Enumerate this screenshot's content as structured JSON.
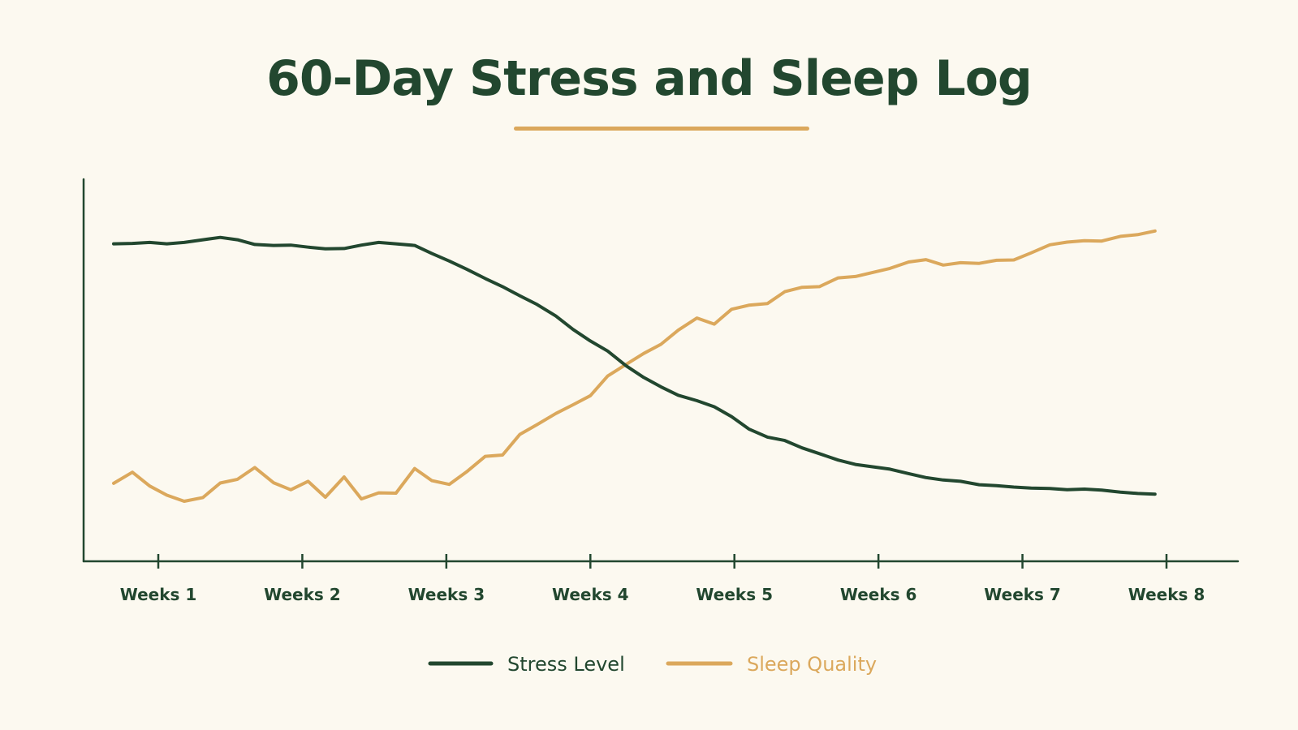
{
  "colors": {
    "background": "#fcf9f0",
    "stress": "#22472f",
    "sleep": "#dba85c",
    "axis": "#22472f"
  },
  "chart_data": {
    "type": "line",
    "title": "60-Day Stress and Sleep Log",
    "xlabel": "",
    "ylabel": "",
    "x_ticks": [
      "Weeks 1",
      "Weeks 2",
      "Weeks 3",
      "Weeks 4",
      "Weeks 5",
      "Weeks 6",
      "Weeks 7",
      "Weeks 8"
    ],
    "x_range": [
      0.45,
      8.4
    ],
    "y_range": [
      0,
      100
    ],
    "grid": false,
    "legend_position": "bottom",
    "x": [
      0.69,
      0.82,
      0.94,
      1.06,
      1.18,
      1.31,
      1.43,
      1.55,
      1.67,
      1.8,
      1.92,
      2.04,
      2.16,
      2.29,
      2.41,
      2.53,
      2.65,
      2.78,
      2.9,
      3.02,
      3.14,
      3.27,
      3.39,
      3.51,
      3.63,
      3.76,
      3.88,
      4.0,
      4.12,
      4.25,
      4.37,
      4.49,
      4.61,
      4.74,
      4.86,
      4.98,
      5.1,
      5.23,
      5.35,
      5.47,
      5.59,
      5.72,
      5.84,
      5.96,
      6.08,
      6.21,
      6.33,
      6.45,
      6.57,
      6.7,
      6.82,
      6.94,
      7.06,
      7.19,
      7.31,
      7.43,
      7.55,
      7.68,
      7.8,
      7.92
    ],
    "series": [
      {
        "name": "Stress Level",
        "color": "#22472f",
        "values": [
          84.0,
          84.1,
          84.4,
          84.0,
          84.4,
          85.2,
          85.9,
          85.2,
          83.8,
          83.5,
          83.6,
          83.0,
          82.5,
          82.6,
          83.6,
          84.4,
          84.0,
          83.5,
          81.1,
          78.9,
          76.5,
          73.7,
          71.3,
          68.6,
          66.0,
          62.6,
          58.6,
          55.2,
          52.2,
          47.8,
          44.4,
          41.6,
          39.1,
          37.5,
          35.7,
          32.8,
          29.1,
          26.7,
          25.7,
          23.5,
          21.8,
          19.9,
          18.6,
          17.9,
          17.2,
          15.9,
          14.7,
          14.0,
          13.6,
          12.6,
          12.3,
          11.9,
          11.6,
          11.5,
          11.1,
          11.3,
          11.0,
          10.4,
          10.0,
          9.8
        ]
      },
      {
        "name": "Sleep Quality",
        "color": "#dba85c",
        "values": [
          13.0,
          16.3,
          12.2,
          9.5,
          7.7,
          8.8,
          13.1,
          14.2,
          17.7,
          13.2,
          11.1,
          13.6,
          8.9,
          14.9,
          8.4,
          10.2,
          10.1,
          17.4,
          13.8,
          12.7,
          16.4,
          21.0,
          21.4,
          27.5,
          30.4,
          33.7,
          36.3,
          39.0,
          44.8,
          48.3,
          51.5,
          54.2,
          58.4,
          62.0,
          60.2,
          64.6,
          65.8,
          66.3,
          69.8,
          71.1,
          71.3,
          73.9,
          74.3,
          75.5,
          76.7,
          78.6,
          79.3,
          77.7,
          78.4,
          78.2,
          79.1,
          79.2,
          81.3,
          83.7,
          84.5,
          84.9,
          84.8,
          86.2,
          86.7,
          87.8
        ]
      }
    ]
  }
}
